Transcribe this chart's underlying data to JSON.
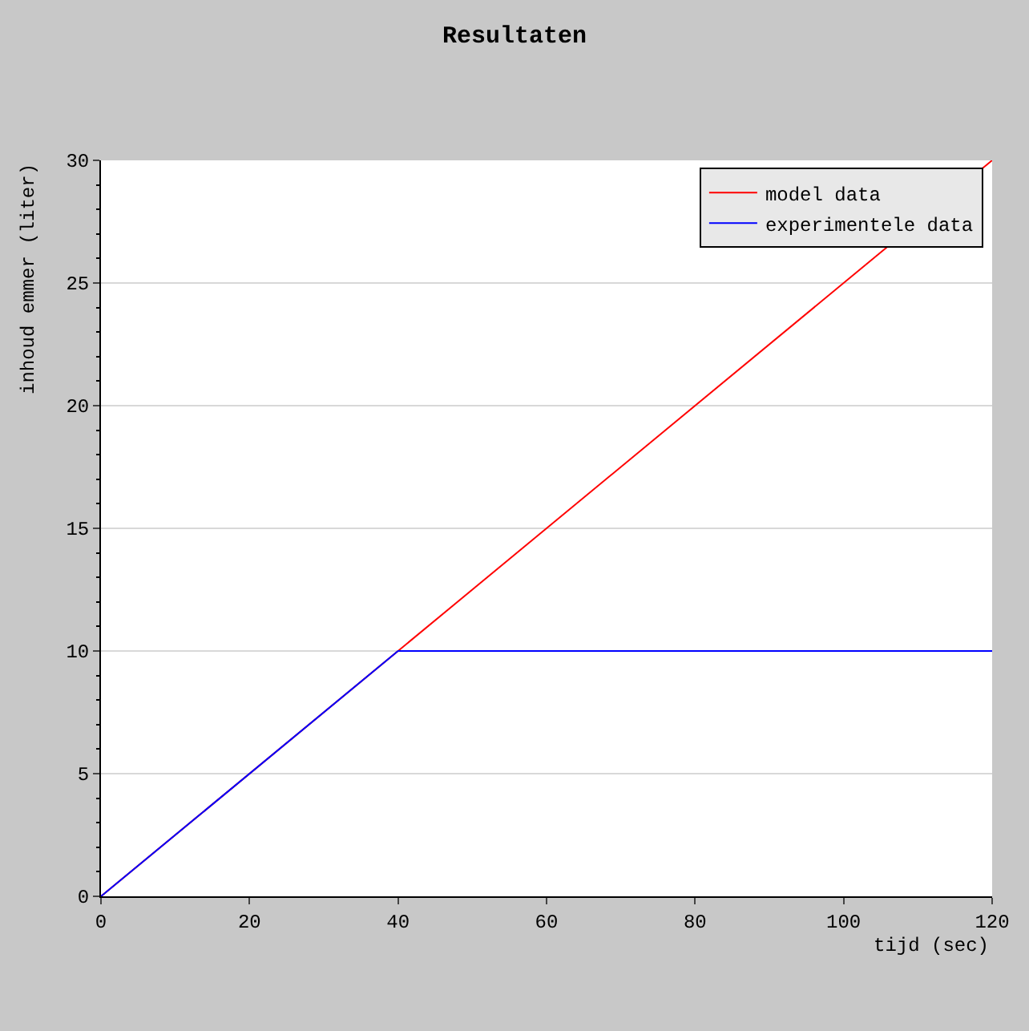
{
  "chart_data": {
    "type": "line",
    "title": "Resultaten",
    "xlabel": "tijd (sec)",
    "ylabel": "inhoud emmer (liter)",
    "series": [
      {
        "name": "model data",
        "color": "#ff0000",
        "x": [
          0,
          120
        ],
        "values": [
          0,
          30
        ]
      },
      {
        "name": "experimentele data",
        "color": "#0000ff",
        "x": [
          0,
          40,
          120
        ],
        "values": [
          0,
          10,
          10
        ]
      }
    ],
    "xlim": [
      0,
      120
    ],
    "xticks": [
      0,
      20,
      40,
      60,
      80,
      100,
      120
    ],
    "ylim": [
      0,
      30
    ],
    "yticks": [
      0,
      5,
      10,
      15,
      20,
      25,
      30
    ],
    "grid": "y",
    "legend": "top right",
    "marker": "none",
    "line_style": "solid"
  }
}
